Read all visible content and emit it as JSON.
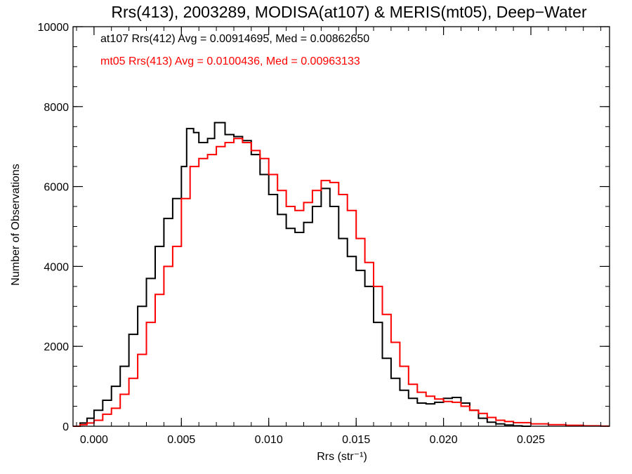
{
  "chart_data": {
    "type": "line",
    "title": "Rrs(413), 2003289, MODISA(at107) & MERIS(mt05), Deep−Water",
    "xlabel": "Rrs (str⁻¹)",
    "ylabel": "Number of Observations",
    "xlim": [
      -0.0012,
      0.0295
    ],
    "ylim": [
      0,
      10000
    ],
    "x_ticks": [
      {
        "value": 0.0,
        "label": "0.000"
      },
      {
        "value": 0.005,
        "label": "0.005"
      },
      {
        "value": 0.01,
        "label": "0.010"
      },
      {
        "value": 0.015,
        "label": "0.015"
      },
      {
        "value": 0.02,
        "label": "0.020"
      },
      {
        "value": 0.025,
        "label": "0.025"
      }
    ],
    "y_ticks": [
      {
        "value": 0,
        "label": "0"
      },
      {
        "value": 2000,
        "label": "2000"
      },
      {
        "value": 4000,
        "label": "4000"
      },
      {
        "value": 6000,
        "label": "6000"
      },
      {
        "value": 8000,
        "label": "8000"
      },
      {
        "value": 10000,
        "label": "10000"
      }
    ],
    "grid": false,
    "legend_position": "top-left",
    "series": [
      {
        "name": "at107 Rrs(412)",
        "label": "at107 Rrs(412) Avg = 0.00914695, Med = 0.00862650",
        "color": "#000000",
        "step": true,
        "points": [
          [
            -0.0012,
            0
          ],
          [
            -0.0008,
            80
          ],
          [
            -0.0004,
            200
          ],
          [
            0.0,
            400
          ],
          [
            0.0005,
            650
          ],
          [
            0.001,
            1000
          ],
          [
            0.0015,
            1500
          ],
          [
            0.002,
            2300
          ],
          [
            0.0025,
            3000
          ],
          [
            0.003,
            3700
          ],
          [
            0.0035,
            4500
          ],
          [
            0.004,
            5200
          ],
          [
            0.0045,
            5700
          ],
          [
            0.005,
            6500
          ],
          [
            0.0053,
            7450
          ],
          [
            0.0057,
            7350
          ],
          [
            0.006,
            7100
          ],
          [
            0.0065,
            7200
          ],
          [
            0.0069,
            7600
          ],
          [
            0.0075,
            7300
          ],
          [
            0.008,
            7250
          ],
          [
            0.0085,
            7150
          ],
          [
            0.009,
            6800
          ],
          [
            0.0095,
            6300
          ],
          [
            0.01,
            5800
          ],
          [
            0.0105,
            5300
          ],
          [
            0.011,
            4950
          ],
          [
            0.0115,
            4850
          ],
          [
            0.012,
            5100
          ],
          [
            0.0125,
            5500
          ],
          [
            0.013,
            5950
          ],
          [
            0.0135,
            5500
          ],
          [
            0.014,
            4700
          ],
          [
            0.0145,
            4250
          ],
          [
            0.015,
            3900
          ],
          [
            0.0155,
            3500
          ],
          [
            0.016,
            2600
          ],
          [
            0.0165,
            1700
          ],
          [
            0.017,
            1200
          ],
          [
            0.0175,
            900
          ],
          [
            0.018,
            700
          ],
          [
            0.0185,
            580
          ],
          [
            0.019,
            560
          ],
          [
            0.0195,
            600
          ],
          [
            0.02,
            700
          ],
          [
            0.0205,
            720
          ],
          [
            0.021,
            580
          ],
          [
            0.0215,
            400
          ],
          [
            0.022,
            200
          ],
          [
            0.0225,
            100
          ],
          [
            0.023,
            60
          ],
          [
            0.0235,
            30
          ],
          [
            0.024,
            10
          ],
          [
            0.0245,
            0
          ]
        ]
      },
      {
        "name": "mt05 Rrs(413)",
        "label": "mt05 Rrs(413) Avg = 0.0100436, Med = 0.00963133",
        "color": "#ff0000",
        "step": true,
        "points": [
          [
            -0.0012,
            0
          ],
          [
            -0.0008,
            40
          ],
          [
            -0.0004,
            80
          ],
          [
            0.0,
            150
          ],
          [
            0.0005,
            300
          ],
          [
            0.001,
            450
          ],
          [
            0.0015,
            800
          ],
          [
            0.002,
            1200
          ],
          [
            0.0025,
            1800
          ],
          [
            0.003,
            2600
          ],
          [
            0.0035,
            3300
          ],
          [
            0.004,
            4000
          ],
          [
            0.0045,
            4500
          ],
          [
            0.005,
            5700
          ],
          [
            0.0055,
            6500
          ],
          [
            0.006,
            6700
          ],
          [
            0.0065,
            6800
          ],
          [
            0.007,
            7000
          ],
          [
            0.0075,
            7100
          ],
          [
            0.008,
            7200
          ],
          [
            0.0085,
            7100
          ],
          [
            0.009,
            6900
          ],
          [
            0.0095,
            6700
          ],
          [
            0.01,
            6300
          ],
          [
            0.0105,
            5900
          ],
          [
            0.011,
            5500
          ],
          [
            0.0115,
            5400
          ],
          [
            0.012,
            5600
          ],
          [
            0.0125,
            5900
          ],
          [
            0.013,
            6150
          ],
          [
            0.0135,
            6100
          ],
          [
            0.014,
            5800
          ],
          [
            0.0145,
            5400
          ],
          [
            0.015,
            4700
          ],
          [
            0.0155,
            4100
          ],
          [
            0.016,
            3500
          ],
          [
            0.0165,
            2800
          ],
          [
            0.017,
            2100
          ],
          [
            0.0175,
            1500
          ],
          [
            0.018,
            1050
          ],
          [
            0.0185,
            850
          ],
          [
            0.019,
            750
          ],
          [
            0.0195,
            680
          ],
          [
            0.02,
            620
          ],
          [
            0.0205,
            600
          ],
          [
            0.021,
            500
          ],
          [
            0.0215,
            400
          ],
          [
            0.022,
            320
          ],
          [
            0.0225,
            220
          ],
          [
            0.023,
            150
          ],
          [
            0.0235,
            120
          ],
          [
            0.024,
            90
          ],
          [
            0.025,
            60
          ],
          [
            0.026,
            40
          ],
          [
            0.027,
            25
          ],
          [
            0.028,
            10
          ],
          [
            0.029,
            5
          ]
        ]
      }
    ]
  }
}
